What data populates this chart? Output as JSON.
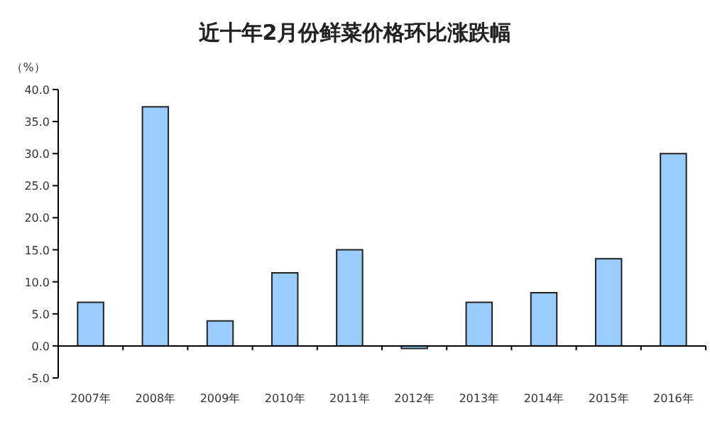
{
  "chart_data": {
    "type": "bar",
    "title": "近十年2月份鲜菜价格环比涨跌幅",
    "ylabel": "（%）",
    "categories": [
      "2007年",
      "2008年",
      "2009年",
      "2010年",
      "2011年",
      "2012年",
      "2013年",
      "2014年",
      "2015年",
      "2016年"
    ],
    "values": [
      6.8,
      37.3,
      3.9,
      11.4,
      15.0,
      -0.4,
      6.8,
      8.3,
      13.6,
      30.0
    ],
    "color": "#99ccff",
    "ylim": [
      -5,
      40
    ],
    "yticks": [
      {
        "value": -5,
        "label": "-5.0"
      },
      {
        "value": 0,
        "label": "0.0"
      },
      {
        "value": 5,
        "label": "5.0"
      },
      {
        "value": 10,
        "label": "10.0"
      },
      {
        "value": 15,
        "label": "15.0"
      },
      {
        "value": 20,
        "label": "20.0"
      },
      {
        "value": 25,
        "label": "25.0"
      },
      {
        "value": 30,
        "label": "30.0"
      },
      {
        "value": 35,
        "label": "35.0"
      },
      {
        "value": 40,
        "label": "40.0"
      }
    ]
  }
}
